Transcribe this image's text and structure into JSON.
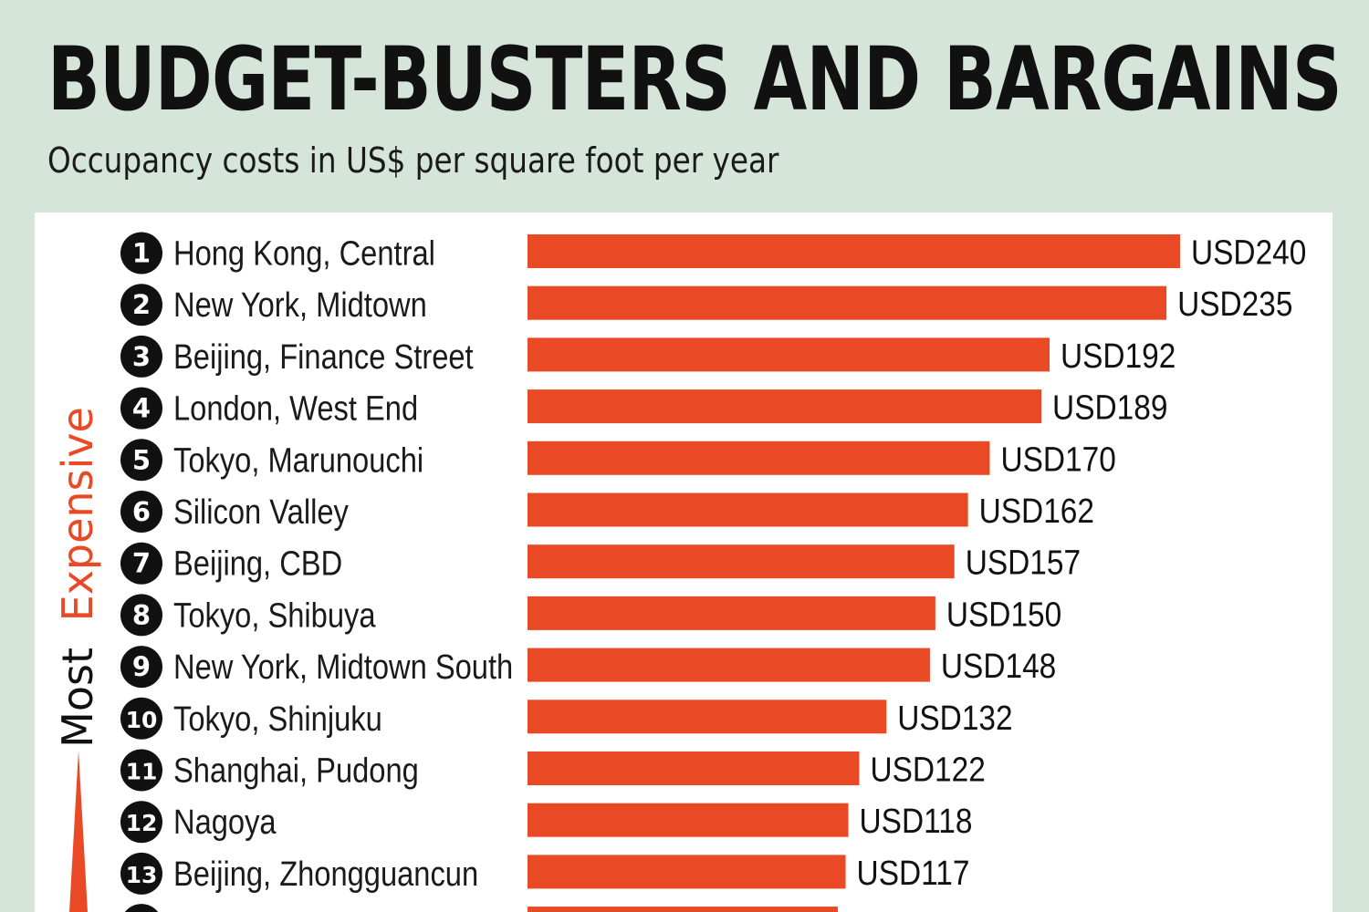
{
  "header": {
    "title": "BUDGET-BUSTERS AND BARGAINS",
    "subtitle": "Occupancy costs in US$ per square foot per year"
  },
  "side_label": {
    "prefix": "Most",
    "emphasis": "Expensive"
  },
  "colors": {
    "bar": "#e94a25",
    "badge": "#111111",
    "badge_text": "#ffffff",
    "text": "#1a1a1a",
    "accent": "#e94a25"
  },
  "chart_data": {
    "type": "bar",
    "orientation": "horizontal",
    "title": "BUDGET-BUSTERS AND BARGAINS",
    "subtitle": "Occupancy costs in US$ per square foot per year",
    "value_prefix": "USD",
    "xlim": [
      0,
      240
    ],
    "categories": [
      {
        "rank": "1",
        "label": "Hong Kong, Central",
        "value": 240
      },
      {
        "rank": "2",
        "label": "New York, Midtown",
        "value": 235
      },
      {
        "rank": "3",
        "label": "Beijing, Finance Street",
        "value": 192
      },
      {
        "rank": "4",
        "label": "London, West End",
        "value": 189
      },
      {
        "rank": "5",
        "label": "Tokyo, Marunouchi",
        "value": 170
      },
      {
        "rank": "6",
        "label": "Silicon Valley",
        "value": 162
      },
      {
        "rank": "7",
        "label": "Beijing, CBD",
        "value": 157
      },
      {
        "rank": "8",
        "label": "Tokyo, Shibuya",
        "value": 150
      },
      {
        "rank": "9",
        "label": "New York, Midtown South",
        "value": 148
      },
      {
        "rank": "10",
        "label": "Tokyo, Shinjuku",
        "value": 132
      },
      {
        "rank": "11",
        "label": "Shanghai, Pudong",
        "value": 122
      },
      {
        "rank": "12",
        "label": "Nagoya",
        "value": 118
      },
      {
        "rank": "13",
        "label": "Beijing, Zhongguancun",
        "value": 117
      }
    ],
    "value_labels": [
      "USD240",
      "USD235",
      "USD192",
      "USD189",
      "USD170",
      "USD162",
      "USD157",
      "USD150",
      "USD148",
      "USD132",
      "USD122",
      "USD118",
      "USD117"
    ]
  }
}
